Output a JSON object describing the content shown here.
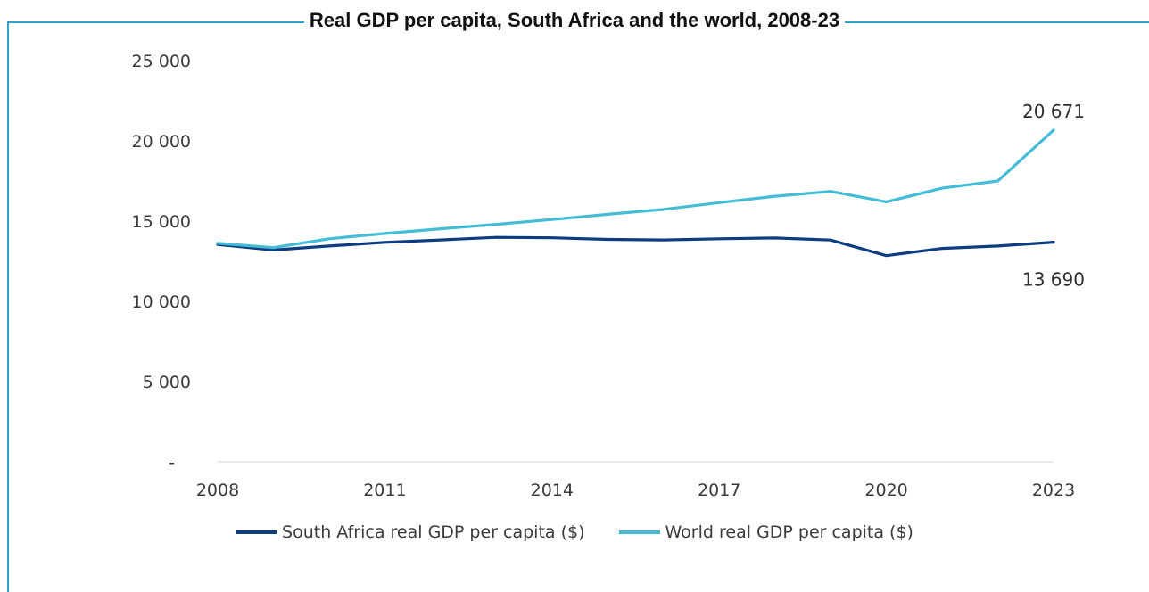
{
  "chart_data": {
    "type": "line",
    "title": "Real GDP per capita, South Africa and the world, 2008-23",
    "x": [
      2008,
      2009,
      2010,
      2011,
      2012,
      2013,
      2014,
      2015,
      2016,
      2017,
      2018,
      2019,
      2020,
      2021,
      2022,
      2023
    ],
    "x_tick_labels": [
      "2008",
      "2011",
      "2014",
      "2017",
      "2020",
      "2023"
    ],
    "y_tick_labels": [
      "-",
      "5 000",
      "10 000",
      "15 000",
      "20 000",
      "25 000"
    ],
    "ylim": [
      0,
      25000
    ],
    "series": [
      {
        "name": "South Africa real GDP per capita ($)",
        "color": "#0d3d80",
        "values": [
          13550,
          13200,
          13450,
          13680,
          13830,
          13990,
          13960,
          13860,
          13830,
          13900,
          13950,
          13820,
          12850,
          13300,
          13450,
          13690
        ],
        "end_label": "13 690"
      },
      {
        "name": "World real GDP per capita ($)",
        "color": "#45bcd6",
        "values": [
          13620,
          13350,
          13900,
          14230,
          14520,
          14800,
          15100,
          15420,
          15730,
          16150,
          16550,
          16850,
          16200,
          17050,
          17500,
          20671
        ],
        "end_label": "20 671"
      }
    ],
    "grid": false,
    "legend_position": "bottom"
  }
}
